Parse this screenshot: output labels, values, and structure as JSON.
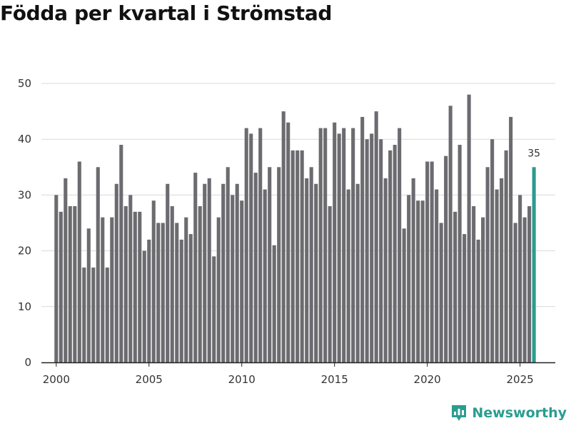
{
  "brand": {
    "name": "Newsworthy",
    "color": "#2a9d8f"
  },
  "chart_data": {
    "type": "bar",
    "title": "Födda per kvartal i Strömstad",
    "xlabel": "",
    "ylabel": "",
    "ylim": [
      0,
      50
    ],
    "yticks": [
      0,
      10,
      20,
      30,
      40,
      50
    ],
    "xticks": [
      2000,
      2005,
      2010,
      2015,
      2020,
      2025
    ],
    "xlim": [
      1999.2,
      2026.9
    ],
    "x_start": 2000.0,
    "x_step": 0.25,
    "grid": true,
    "bar_color": "#6b6b70",
    "highlight_color": "#2a9d8f",
    "highlight_label": "35",
    "values": [
      30,
      27,
      33,
      28,
      28,
      36,
      17,
      24,
      17,
      35,
      26,
      17,
      26,
      32,
      39,
      28,
      30,
      27,
      27,
      20,
      22,
      29,
      25,
      25,
      32,
      28,
      25,
      22,
      26,
      23,
      34,
      28,
      32,
      33,
      19,
      26,
      32,
      35,
      30,
      32,
      29,
      42,
      41,
      34,
      42,
      31,
      35,
      21,
      35,
      45,
      43,
      38,
      38,
      38,
      33,
      35,
      32,
      42,
      42,
      28,
      43,
      41,
      42,
      31,
      42,
      32,
      44,
      40,
      41,
      45,
      40,
      33,
      38,
      39,
      42,
      24,
      30,
      33,
      29,
      29,
      36,
      36,
      31,
      25,
      37,
      46,
      27,
      39,
      23,
      48,
      28,
      22,
      26,
      35,
      40,
      31,
      33,
      38,
      44,
      25,
      30,
      26,
      28,
      35
    ]
  }
}
